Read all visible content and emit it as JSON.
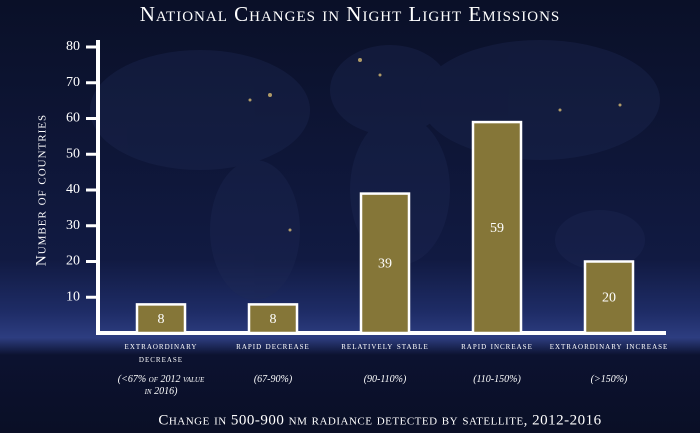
{
  "chart_data": {
    "type": "bar",
    "title": "National Changes in Night Light Emissions",
    "y_label": "Number of countries",
    "x_label": "Change in 500-900 nm radiance detected by satellite, 2012-2016",
    "categories": [
      "extraordinary decrease",
      "rapid decrease",
      "relatively stable",
      "rapid increase",
      "extraordinary increase"
    ],
    "category_notes": [
      "(<67% of 2012 value in 2016)",
      "(67-90%)",
      "(90-110%)",
      "(110-150%)",
      "(>150%)"
    ],
    "values": [
      8,
      8,
      39,
      59,
      20
    ],
    "color": "#857638",
    "ylim": [
      0,
      80
    ],
    "yticks": [
      10,
      20,
      30,
      40,
      50,
      60,
      70,
      80
    ],
    "grid": false
  }
}
